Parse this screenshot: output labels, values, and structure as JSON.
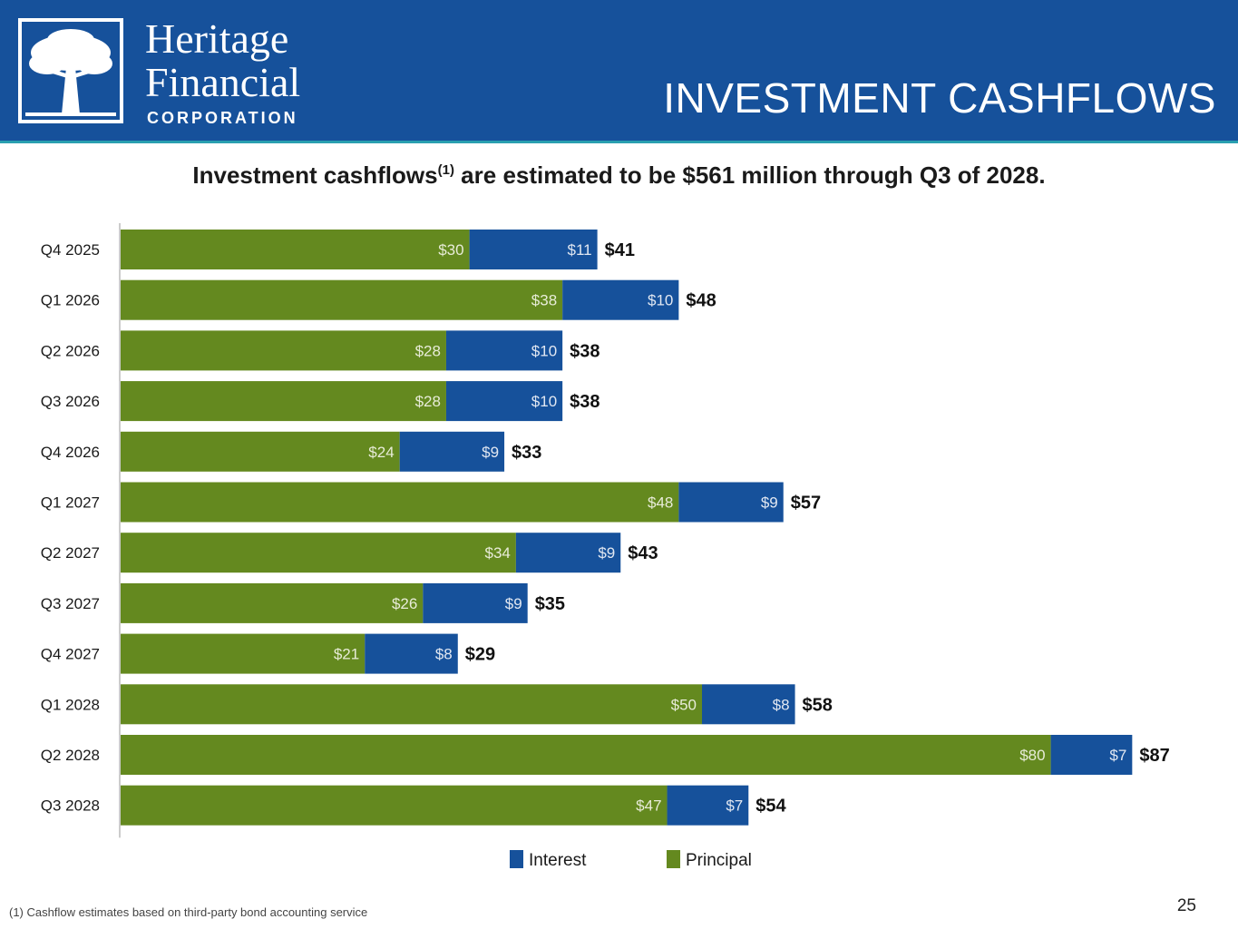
{
  "header": {
    "brand_line1": "Heritage",
    "brand_line2": "Financial",
    "brand_line3": "CORPORATION",
    "slide_title": "INVESTMENT CASHFLOWS"
  },
  "subtitle": {
    "before": "Investment cashflows",
    "sup": "(1)",
    "after": " are estimated to be $561 million through Q3 of 2028."
  },
  "colors": {
    "header_bg": "#16519b",
    "interest": "#16519b",
    "principal": "#64891f"
  },
  "chart_data": {
    "type": "bar",
    "orientation": "horizontal",
    "stacked": true,
    "title": "",
    "xlabel": "",
    "ylabel": "",
    "xlim": [
      0,
      90
    ],
    "categories": [
      "Q4 2025",
      "Q1 2026",
      "Q2 2026",
      "Q3 2026",
      "Q4 2026",
      "Q1 2027",
      "Q2 2027",
      "Q3 2027",
      "Q4 2027",
      "Q1 2028",
      "Q2 2028",
      "Q3 2028"
    ],
    "series": [
      {
        "name": "Principal",
        "values": [
          30,
          38,
          28,
          28,
          24,
          48,
          34,
          26,
          21,
          50,
          80,
          47
        ]
      },
      {
        "name": "Interest",
        "values": [
          11,
          10,
          10,
          10,
          9,
          9,
          9,
          9,
          8,
          8,
          7,
          7
        ]
      }
    ],
    "totals": [
      41,
      48,
      38,
      38,
      33,
      57,
      43,
      35,
      29,
      58,
      87,
      54
    ],
    "value_prefix": "$",
    "legend": {
      "position": "bottom-center",
      "entries": [
        "Interest",
        "Principal"
      ]
    }
  },
  "footnote": "(1) Cashflow estimates based on third-party bond accounting service",
  "page_number": "25"
}
